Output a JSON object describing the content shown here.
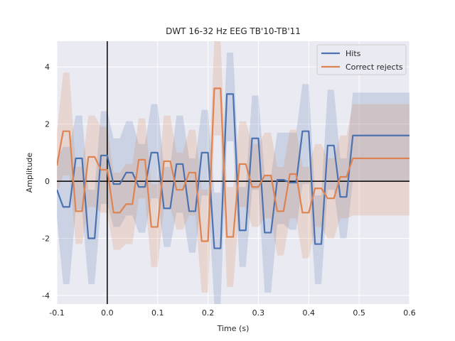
{
  "chart_data": {
    "type": "line",
    "title": "DWT 16-32 Hz EEG TB'10-TB'11",
    "xlabel": "Time (s)",
    "ylabel": "Amplitude",
    "xlim": [
      -0.1,
      0.6
    ],
    "ylim": [
      -4.3,
      4.9
    ],
    "xticks": [
      "-0.1",
      "0.0",
      "0.1",
      "0.2",
      "0.3",
      "0.4",
      "0.5",
      "0.6"
    ],
    "yticks": [
      "-4",
      "-2",
      "0",
      "2",
      "4"
    ],
    "grid": true,
    "legend_position": "top-right",
    "background": "#eaeaf2",
    "x": [
      -0.1,
      -0.0875,
      -0.075,
      -0.0625,
      -0.05,
      -0.0375,
      -0.025,
      -0.0125,
      0.0,
      0.0125,
      0.025,
      0.0375,
      0.05,
      0.0625,
      0.075,
      0.0875,
      0.1,
      0.1125,
      0.125,
      0.1375,
      0.15,
      0.1625,
      0.175,
      0.1875,
      0.2,
      0.2125,
      0.225,
      0.2375,
      0.25,
      0.2625,
      0.275,
      0.2875,
      0.3,
      0.3125,
      0.325,
      0.3375,
      0.35,
      0.3625,
      0.375,
      0.3875,
      0.4,
      0.4125,
      0.425,
      0.4375,
      0.45,
      0.4625,
      0.475,
      0.4875,
      0.5,
      0.5125,
      0.525,
      0.5375,
      0.55,
      0.5625,
      0.575,
      0.5875,
      0.6
    ],
    "series": [
      {
        "name": "Hits",
        "color": "#4c72b0",
        "values": [
          -0.3,
          -0.9,
          -0.9,
          0.8,
          0.8,
          -2.0,
          -2.0,
          0.9,
          0.9,
          -0.1,
          -0.1,
          0.3,
          0.3,
          -0.2,
          -0.2,
          1.0,
          1.0,
          -0.95,
          -0.95,
          0.6,
          0.6,
          -1.05,
          -1.05,
          1.0,
          1.0,
          -2.35,
          -2.35,
          3.05,
          3.05,
          -1.72,
          -1.72,
          1.5,
          1.5,
          -1.8,
          -1.8,
          0.05,
          0.05,
          -0.05,
          -0.05,
          1.75,
          1.75,
          -2.2,
          -2.2,
          1.25,
          1.25,
          -0.55,
          -0.55,
          1.6,
          1.6,
          1.6,
          1.6,
          1.6,
          1.6,
          1.6,
          1.6,
          1.6,
          1.6
        ],
        "lower": [
          -1.3,
          -3.6,
          -3.6,
          -1.0,
          -1.0,
          -3.6,
          -3.6,
          -0.8,
          -0.8,
          -1.6,
          -1.6,
          -1.2,
          -1.2,
          -1.8,
          -1.8,
          -0.6,
          -0.6,
          -2.3,
          -2.3,
          -1.1,
          -1.1,
          -2.5,
          -2.5,
          -0.5,
          -0.5,
          -4.3,
          -4.3,
          1.4,
          1.4,
          -3.0,
          -3.0,
          -0.3,
          -0.3,
          -3.9,
          -3.9,
          -1.5,
          -1.5,
          -1.7,
          -1.7,
          -0.1,
          -0.1,
          -3.6,
          -3.6,
          -0.3,
          -0.3,
          -2.0,
          -2.0,
          0.0,
          0.0,
          0.0,
          0.0,
          0.0,
          0.0,
          0.0,
          0.0,
          0.0,
          0.0
        ],
        "upper": [
          0.8,
          1.2,
          1.2,
          2.3,
          2.3,
          -0.3,
          -0.3,
          2.45,
          2.45,
          1.5,
          1.5,
          2.1,
          2.1,
          1.3,
          1.3,
          2.7,
          2.7,
          0.5,
          0.5,
          2.3,
          2.3,
          0.8,
          0.8,
          2.5,
          2.5,
          -0.4,
          -0.4,
          4.5,
          4.5,
          -0.2,
          -0.2,
          3.0,
          3.0,
          0.2,
          0.2,
          1.7,
          1.7,
          1.7,
          1.7,
          3.4,
          3.4,
          -0.5,
          -0.5,
          3.2,
          3.2,
          0.8,
          0.8,
          3.1,
          3.1,
          3.1,
          3.1,
          3.1,
          3.1,
          3.1,
          3.1,
          3.1,
          3.1
        ]
      },
      {
        "name": "Correct rejects",
        "color": "#dd8452",
        "values": [
          0.55,
          1.75,
          1.75,
          -1.05,
          -1.05,
          0.85,
          0.85,
          0.4,
          0.4,
          -1.1,
          -1.1,
          -0.8,
          -0.8,
          0.75,
          0.75,
          -1.6,
          -1.6,
          0.7,
          0.7,
          -0.3,
          -0.3,
          0.3,
          0.3,
          -2.1,
          -2.1,
          3.25,
          3.25,
          -1.95,
          -1.95,
          0.6,
          0.6,
          -0.2,
          -0.2,
          0.2,
          0.2,
          -1.05,
          -1.05,
          0.25,
          0.25,
          -1.1,
          -1.1,
          -0.25,
          -0.25,
          -0.6,
          -0.6,
          0.15,
          0.15,
          0.8,
          0.8,
          0.8,
          0.8,
          0.8,
          0.8,
          0.8,
          0.8,
          0.8,
          0.8
        ],
        "lower": [
          -0.4,
          0.2,
          0.2,
          -2.2,
          -2.2,
          -0.9,
          -0.9,
          -1.1,
          -1.1,
          -2.4,
          -2.4,
          -2.2,
          -2.2,
          -0.6,
          -0.6,
          -3.0,
          -3.0,
          -0.9,
          -0.9,
          -1.7,
          -1.7,
          -1.2,
          -1.2,
          -3.9,
          -3.9,
          1.6,
          1.6,
          -3.7,
          -3.7,
          -0.9,
          -0.9,
          -1.6,
          -1.6,
          -1.3,
          -1.3,
          -2.6,
          -2.6,
          -1.3,
          -1.3,
          -2.7,
          -2.7,
          -1.6,
          -1.6,
          -2.0,
          -2.0,
          -1.3,
          -1.3,
          -1.2,
          -1.2,
          -1.2,
          -1.2,
          -1.2,
          -1.2,
          -1.2,
          -1.2,
          -1.2,
          -1.2
        ],
        "upper": [
          1.7,
          3.8,
          3.8,
          0.5,
          0.5,
          2.3,
          2.3,
          1.9,
          1.9,
          0.3,
          0.3,
          0.6,
          0.6,
          2.2,
          2.2,
          -0.1,
          -0.1,
          2.3,
          2.3,
          1.0,
          1.0,
          1.8,
          1.8,
          -0.3,
          -0.3,
          4.9,
          4.9,
          -0.2,
          -0.2,
          2.1,
          2.1,
          1.3,
          1.3,
          1.7,
          1.7,
          0.5,
          0.5,
          1.8,
          1.8,
          0.5,
          0.5,
          1.3,
          1.3,
          0.8,
          0.8,
          1.6,
          1.6,
          2.7,
          2.7,
          2.7,
          2.7,
          2.7,
          2.7,
          2.7,
          2.7,
          2.7,
          2.7
        ]
      }
    ],
    "reference_lines": [
      {
        "axis": "x",
        "value": 0,
        "color": "#000000"
      },
      {
        "axis": "y",
        "value": 0,
        "color": "#000000"
      }
    ]
  }
}
